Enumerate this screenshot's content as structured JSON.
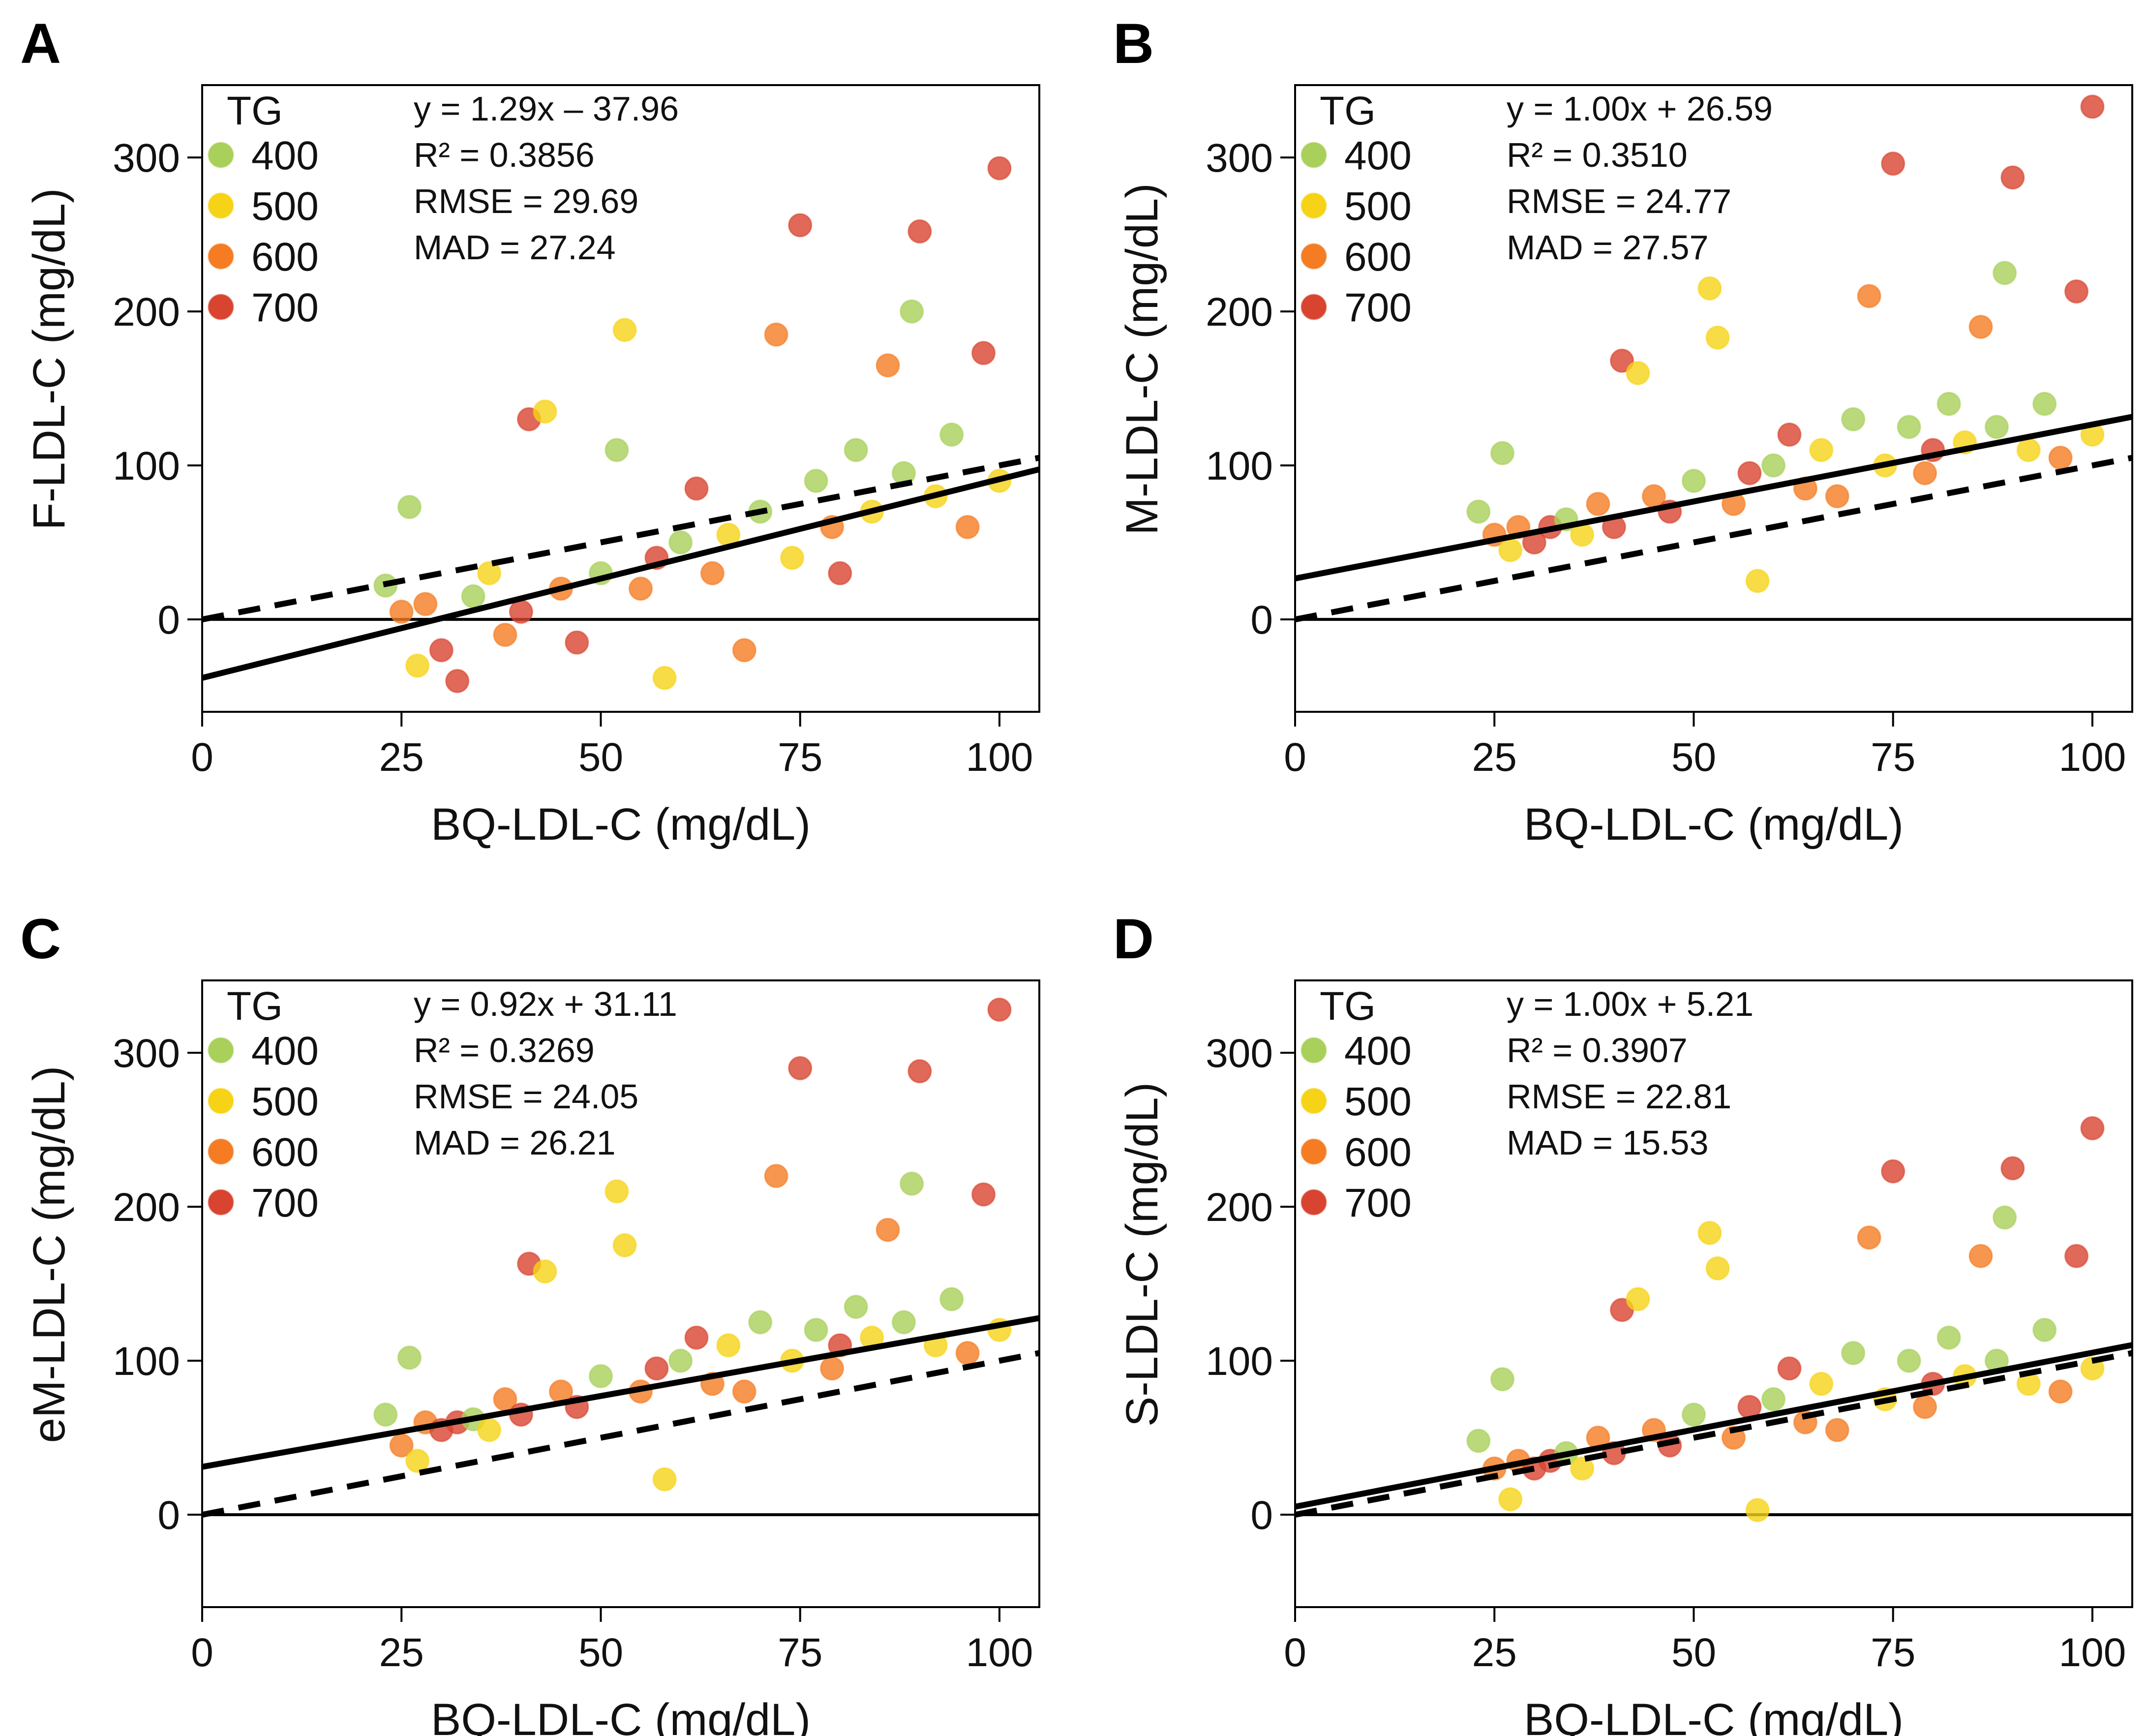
{
  "colors": {
    "400": "#a8d05a",
    "500": "#f6d317",
    "600": "#f57c22",
    "700": "#d8442f"
  },
  "chart_data": [
    {
      "panel": "A",
      "type": "scatter",
      "xlabel": "BQ-LDL-C (mg/dL)",
      "ylabel": "F-LDL-C (mg/dL)",
      "xlim": [
        0,
        105
      ],
      "ylim": [
        -60,
        347
      ],
      "xticks": [
        "0",
        "25",
        "50",
        "75",
        "100"
      ],
      "yticks": [
        "0",
        "100",
        "200",
        "300"
      ],
      "legend": {
        "title": "TG",
        "entries": [
          "400",
          "500",
          "600",
          "700"
        ],
        "placement": "top-left"
      },
      "stats": [
        "y = 1.29x – 37.96",
        "R² = 0.3856",
        "RMSE = 29.69",
        "MAD = 27.24"
      ],
      "fit": {
        "slope": 1.29,
        "intercept": -37.96
      },
      "identity_line": true,
      "points": {
        "x": [
          23,
          25,
          26,
          27,
          28,
          30,
          32,
          34,
          36,
          38,
          40,
          41,
          43,
          45,
          47,
          50,
          52,
          53,
          55,
          57,
          58,
          60,
          62,
          64,
          66,
          68,
          70,
          72,
          74,
          75,
          77,
          79,
          80,
          82,
          84,
          86,
          88,
          89,
          90,
          92,
          94,
          96,
          98,
          100,
          100
        ],
        "y": [
          22,
          5,
          73,
          -30,
          10,
          -20,
          -40,
          15,
          30,
          -10,
          5,
          130,
          135,
          20,
          -15,
          30,
          110,
          188,
          20,
          40,
          -38,
          50,
          85,
          30,
          55,
          -20,
          70,
          185,
          40,
          256,
          90,
          60,
          30,
          110,
          70,
          165,
          95,
          200,
          252,
          80,
          120,
          60,
          173,
          293,
          90
        ],
        "tg": [
          400,
          600,
          400,
          500,
          600,
          700,
          700,
          400,
          500,
          600,
          700,
          700,
          500,
          600,
          700,
          400,
          400,
          500,
          600,
          700,
          500,
          400,
          700,
          600,
          500,
          600,
          400,
          600,
          500,
          700,
          400,
          600,
          700,
          400,
          500,
          600,
          400,
          400,
          700,
          500,
          400,
          600,
          700,
          700,
          500
        ]
      }
    },
    {
      "panel": "B",
      "type": "scatter",
      "xlabel": "BQ-LDL-C (mg/dL)",
      "ylabel": "M-LDL-C (mg/dL)",
      "xlim": [
        0,
        105
      ],
      "ylim": [
        -60,
        347
      ],
      "xticks": [
        "0",
        "25",
        "50",
        "75",
        "100"
      ],
      "yticks": [
        "0",
        "100",
        "200",
        "300"
      ],
      "legend": {
        "title": "TG",
        "entries": [
          "400",
          "500",
          "600",
          "700"
        ],
        "placement": "top-left"
      },
      "stats": [
        "y = 1.00x + 26.59",
        "R² = 0.3510",
        "RMSE = 24.77",
        "MAD = 27.57"
      ],
      "fit": {
        "slope": 1.0,
        "intercept": 26.59
      },
      "identity_line": true,
      "points": {
        "x": [
          23,
          25,
          26,
          27,
          28,
          30,
          32,
          34,
          36,
          38,
          40,
          41,
          43,
          45,
          47,
          50,
          52,
          53,
          55,
          57,
          58,
          60,
          62,
          64,
          66,
          68,
          70,
          72,
          74,
          75,
          77,
          79,
          80,
          82,
          84,
          86,
          88,
          89,
          90,
          92,
          94,
          96,
          98,
          100,
          100
        ],
        "y": [
          70,
          55,
          108,
          45,
          60,
          50,
          60,
          65,
          55,
          75,
          60,
          168,
          160,
          80,
          70,
          90,
          215,
          183,
          75,
          95,
          25,
          100,
          120,
          85,
          110,
          80,
          130,
          210,
          100,
          296,
          125,
          95,
          110,
          140,
          115,
          190,
          125,
          225,
          287,
          110,
          140,
          105,
          213,
          333,
          120
        ],
        "tg": [
          400,
          600,
          400,
          500,
          600,
          700,
          700,
          400,
          500,
          600,
          700,
          700,
          500,
          600,
          700,
          400,
          500,
          500,
          600,
          700,
          500,
          400,
          700,
          600,
          500,
          600,
          400,
          600,
          500,
          700,
          400,
          600,
          700,
          400,
          500,
          600,
          400,
          400,
          700,
          500,
          400,
          600,
          700,
          700,
          500
        ]
      }
    },
    {
      "panel": "C",
      "type": "scatter",
      "xlabel": "BQ-LDL-C (mg/dL)",
      "ylabel": "eM-LDL-C (mg/dL)",
      "xlim": [
        0,
        105
      ],
      "ylim": [
        -60,
        347
      ],
      "xticks": [
        "0",
        "25",
        "50",
        "75",
        "100"
      ],
      "yticks": [
        "0",
        "100",
        "200",
        "300"
      ],
      "legend": {
        "title": "TG",
        "entries": [
          "400",
          "500",
          "600",
          "700"
        ],
        "placement": "top-left"
      },
      "stats": [
        "y = 0.92x + 31.11",
        "R² = 0.3269",
        "RMSE = 24.05",
        "MAD = 26.21"
      ],
      "fit": {
        "slope": 0.92,
        "intercept": 31.11
      },
      "identity_line": true,
      "points": {
        "x": [
          23,
          25,
          26,
          27,
          28,
          30,
          32,
          34,
          36,
          38,
          40,
          41,
          43,
          45,
          47,
          50,
          52,
          53,
          55,
          57,
          58,
          60,
          62,
          64,
          66,
          68,
          70,
          72,
          74,
          75,
          77,
          79,
          80,
          82,
          84,
          86,
          88,
          89,
          90,
          92,
          94,
          96,
          98,
          100,
          100
        ],
        "y": [
          65,
          45,
          102,
          35,
          60,
          55,
          60,
          62,
          55,
          75,
          65,
          163,
          158,
          80,
          70,
          90,
          210,
          175,
          80,
          95,
          23,
          100,
          115,
          85,
          110,
          80,
          125,
          220,
          100,
          290,
          120,
          95,
          110,
          135,
          115,
          185,
          125,
          215,
          288,
          110,
          140,
          105,
          208,
          328,
          120
        ],
        "tg": [
          400,
          600,
          400,
          500,
          600,
          700,
          700,
          400,
          500,
          600,
          700,
          700,
          500,
          600,
          700,
          400,
          500,
          500,
          600,
          700,
          500,
          400,
          700,
          600,
          500,
          600,
          400,
          600,
          500,
          700,
          400,
          600,
          700,
          400,
          500,
          600,
          400,
          400,
          700,
          500,
          400,
          600,
          700,
          700,
          500
        ]
      }
    },
    {
      "panel": "D",
      "type": "scatter",
      "xlabel": "BQ-LDL-C (mg/dL)",
      "ylabel": "S-LDL-C (mg/dL)",
      "xlim": [
        0,
        105
      ],
      "ylim": [
        -60,
        347
      ],
      "xticks": [
        "0",
        "25",
        "50",
        "75",
        "100"
      ],
      "yticks": [
        "0",
        "100",
        "200",
        "300"
      ],
      "legend": {
        "title": "TG",
        "entries": [
          "400",
          "500",
          "600",
          "700"
        ],
        "placement": "top-left"
      },
      "stats": [
        "y = 1.00x + 5.21",
        "R² = 0.3907",
        "RMSE = 22.81",
        "MAD = 15.53"
      ],
      "fit": {
        "slope": 1.0,
        "intercept": 5.21
      },
      "identity_line": true,
      "points": {
        "x": [
          23,
          25,
          26,
          27,
          28,
          30,
          32,
          34,
          36,
          38,
          40,
          41,
          43,
          45,
          47,
          50,
          52,
          53,
          55,
          57,
          58,
          60,
          62,
          64,
          66,
          68,
          70,
          72,
          74,
          75,
          77,
          79,
          80,
          82,
          84,
          86,
          88,
          89,
          90,
          92,
          94,
          96,
          98,
          100,
          100
        ],
        "y": [
          48,
          30,
          88,
          10,
          35,
          30,
          35,
          40,
          30,
          50,
          40,
          133,
          140,
          55,
          45,
          65,
          183,
          160,
          50,
          70,
          3,
          75,
          95,
          60,
          85,
          55,
          105,
          180,
          75,
          223,
          100,
          70,
          85,
          115,
          90,
          168,
          100,
          193,
          225,
          85,
          120,
          80,
          168,
          251,
          95
        ],
        "tg": [
          400,
          600,
          400,
          500,
          600,
          700,
          700,
          400,
          500,
          600,
          700,
          700,
          500,
          600,
          700,
          400,
          500,
          500,
          600,
          700,
          500,
          400,
          700,
          600,
          500,
          600,
          400,
          600,
          500,
          700,
          400,
          600,
          700,
          400,
          500,
          600,
          400,
          400,
          700,
          500,
          400,
          600,
          700,
          700,
          500
        ]
      }
    }
  ]
}
